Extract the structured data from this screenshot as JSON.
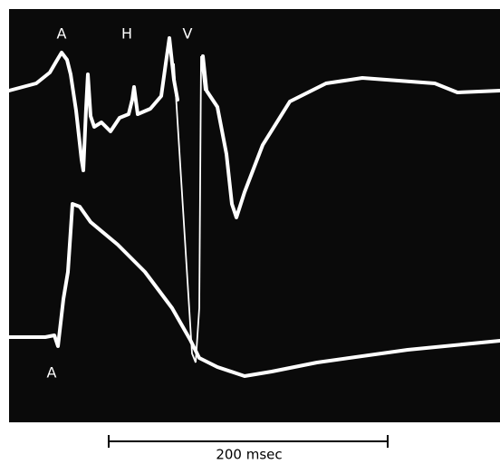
{
  "trace_labels": [
    "A",
    "H",
    "V"
  ],
  "lower_trace_label": "A",
  "scale_bar": {
    "label": "200 msec"
  }
}
